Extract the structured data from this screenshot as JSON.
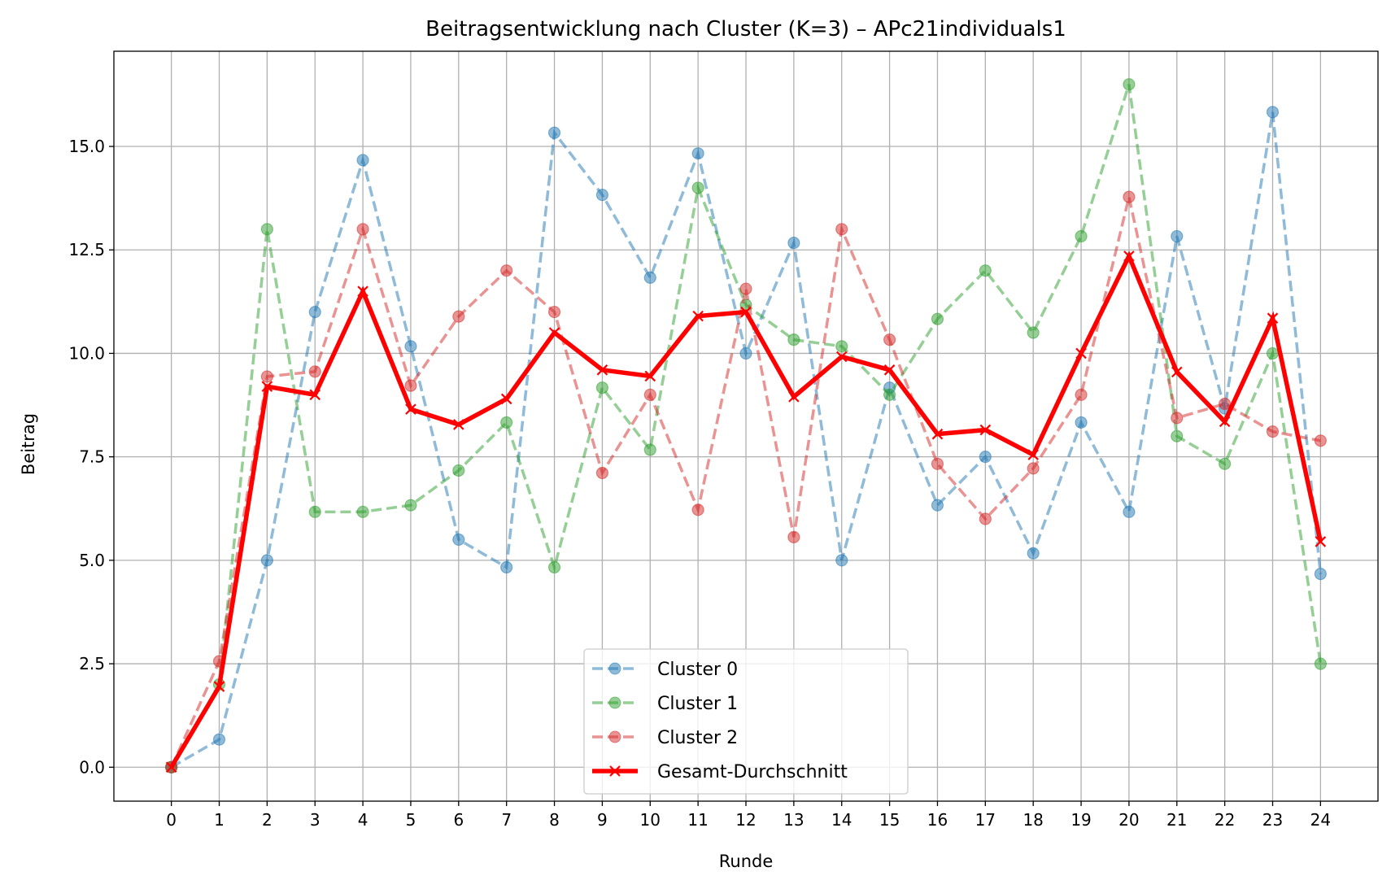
{
  "chart_data": {
    "type": "line",
    "title": "Beitragsentwicklung nach Cluster (K=3) – APc21individuals1",
    "xlabel": "Runde",
    "ylabel": "Beitrag",
    "x": [
      0,
      1,
      2,
      3,
      4,
      5,
      6,
      7,
      8,
      9,
      10,
      11,
      12,
      13,
      14,
      15,
      16,
      17,
      18,
      19,
      20,
      21,
      22,
      23,
      24
    ],
    "xlim": [
      -1.2,
      25.2
    ],
    "ylim": [
      -0.82,
      17.3
    ],
    "yticks": [
      0.0,
      2.5,
      5.0,
      7.5,
      10.0,
      12.5,
      15.0
    ],
    "ytick_labels": [
      "0.0",
      "2.5",
      "5.0",
      "7.5",
      "10.0",
      "12.5",
      "15.0"
    ],
    "grid": true,
    "legend_position": "bottom-center",
    "series": [
      {
        "name": "Cluster 0",
        "color": "#1f77b4",
        "style": "dashed",
        "marker": "circle",
        "values": [
          0.0,
          0.67,
          5.0,
          11.0,
          14.67,
          10.17,
          5.5,
          4.83,
          15.33,
          13.83,
          11.83,
          14.83,
          10.0,
          12.67,
          5.0,
          9.17,
          6.33,
          7.5,
          5.17,
          8.33,
          6.17,
          12.83,
          8.67,
          15.83,
          4.67
        ]
      },
      {
        "name": "Cluster 1",
        "color": "#2ca02c",
        "style": "dashed",
        "marker": "circle",
        "values": [
          0.0,
          2.0,
          13.0,
          6.17,
          6.17,
          6.33,
          7.17,
          8.33,
          4.83,
          9.17,
          7.67,
          14.0,
          11.17,
          10.33,
          10.17,
          9.0,
          10.83,
          12.0,
          10.5,
          12.83,
          16.5,
          8.0,
          7.33,
          10.0,
          2.5
        ]
      },
      {
        "name": "Cluster 2",
        "color": "#d62728",
        "style": "dashed",
        "marker": "circle",
        "values": [
          0.0,
          2.56,
          9.44,
          9.56,
          13.0,
          9.22,
          10.89,
          12.0,
          11.0,
          7.11,
          9.0,
          6.22,
          11.56,
          5.56,
          13.0,
          10.33,
          7.33,
          6.0,
          7.22,
          9.0,
          13.78,
          8.44,
          8.78,
          8.11,
          7.89
        ]
      },
      {
        "name": "Gesamt-Durchschnitt",
        "color": "#ff0000",
        "style": "solid",
        "marker": "x",
        "values": [
          0.0,
          1.95,
          9.2,
          9.0,
          11.5,
          8.65,
          8.28,
          8.9,
          10.5,
          9.6,
          9.45,
          10.9,
          11.0,
          8.95,
          9.92,
          9.6,
          8.05,
          8.15,
          7.55,
          10.0,
          12.35,
          9.55,
          8.35,
          10.85,
          5.45
        ]
      }
    ]
  }
}
